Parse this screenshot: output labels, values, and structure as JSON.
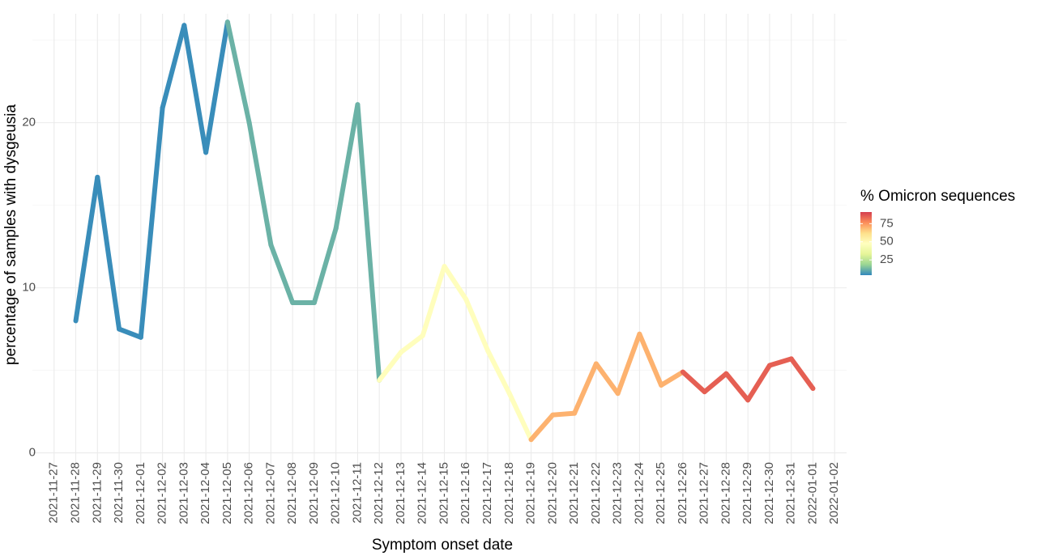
{
  "chart_data": {
    "type": "line",
    "x_label": "Symptom onset date",
    "y_label": "percentage of samples with dysgeusia",
    "x": [
      "2021-11-28",
      "2021-11-29",
      "2021-11-30",
      "2021-12-01",
      "2021-12-02",
      "2021-12-03",
      "2021-12-04",
      "2021-12-05",
      "2021-12-06",
      "2021-12-07",
      "2021-12-08",
      "2021-12-09",
      "2021-12-10",
      "2021-12-11",
      "2021-12-12",
      "2021-12-13",
      "2021-12-14",
      "2021-12-15",
      "2021-12-16",
      "2021-12-17",
      "2021-12-18",
      "2021-12-19",
      "2021-12-20",
      "2021-12-21",
      "2021-12-22",
      "2021-12-23",
      "2021-12-24",
      "2021-12-25",
      "2021-12-26",
      "2021-12-27",
      "2021-12-28",
      "2021-12-29",
      "2021-12-30",
      "2021-12-31",
      "2022-01-01"
    ],
    "values": [
      8.0,
      16.7,
      7.5,
      7.0,
      20.9,
      25.9,
      18.2,
      26.1,
      20.0,
      12.6,
      9.1,
      9.1,
      13.6,
      21.1,
      4.4,
      6.1,
      7.1,
      11.3,
      9.3,
      6.2,
      3.6,
      0.8,
      2.3,
      2.4,
      5.4,
      3.6,
      7.2,
      4.1,
      4.9,
      3.7,
      4.8,
      3.2,
      5.3,
      5.7,
      3.9
    ],
    "color_name": "% Omicron sequences",
    "color_values": [
      5,
      5,
      5,
      5,
      5,
      5,
      5,
      12,
      12,
      12,
      12,
      12,
      12,
      12,
      48,
      48,
      48,
      48,
      48,
      48,
      48,
      70,
      70,
      70,
      70,
      70,
      70,
      70,
      85,
      85,
      85,
      85,
      85,
      85,
      85
    ],
    "colorscale": [
      "#3288BD",
      "#99D594",
      "#E6F598",
      "#FFFFBF",
      "#FEE08B",
      "#FC8D59",
      "#D53E4F"
    ],
    "colorlim": [
      4,
      91
    ],
    "colorticks": [
      25,
      50,
      75
    ],
    "xlim": [
      "2021-11-26",
      "2022-01-03"
    ],
    "xticks": [
      "2021-11-27",
      "2021-11-28",
      "2021-11-29",
      "2021-11-30",
      "2021-12-01",
      "2021-12-02",
      "2021-12-03",
      "2021-12-04",
      "2021-12-05",
      "2021-12-06",
      "2021-12-07",
      "2021-12-08",
      "2021-12-09",
      "2021-12-10",
      "2021-12-11",
      "2021-12-12",
      "2021-12-13",
      "2021-12-14",
      "2021-12-15",
      "2021-12-16",
      "2021-12-17",
      "2021-12-18",
      "2021-12-19",
      "2021-12-20",
      "2021-12-21",
      "2021-12-22",
      "2021-12-23",
      "2021-12-24",
      "2021-12-25",
      "2021-12-26",
      "2021-12-27",
      "2021-12-28",
      "2021-12-29",
      "2021-12-30",
      "2021-12-31",
      "2022-01-01",
      "2022-01-02"
    ],
    "ylim": [
      -1,
      26.6
    ],
    "yticks": [
      0,
      10,
      20
    ],
    "yminor": [
      5,
      15,
      25
    ],
    "grid": true
  }
}
